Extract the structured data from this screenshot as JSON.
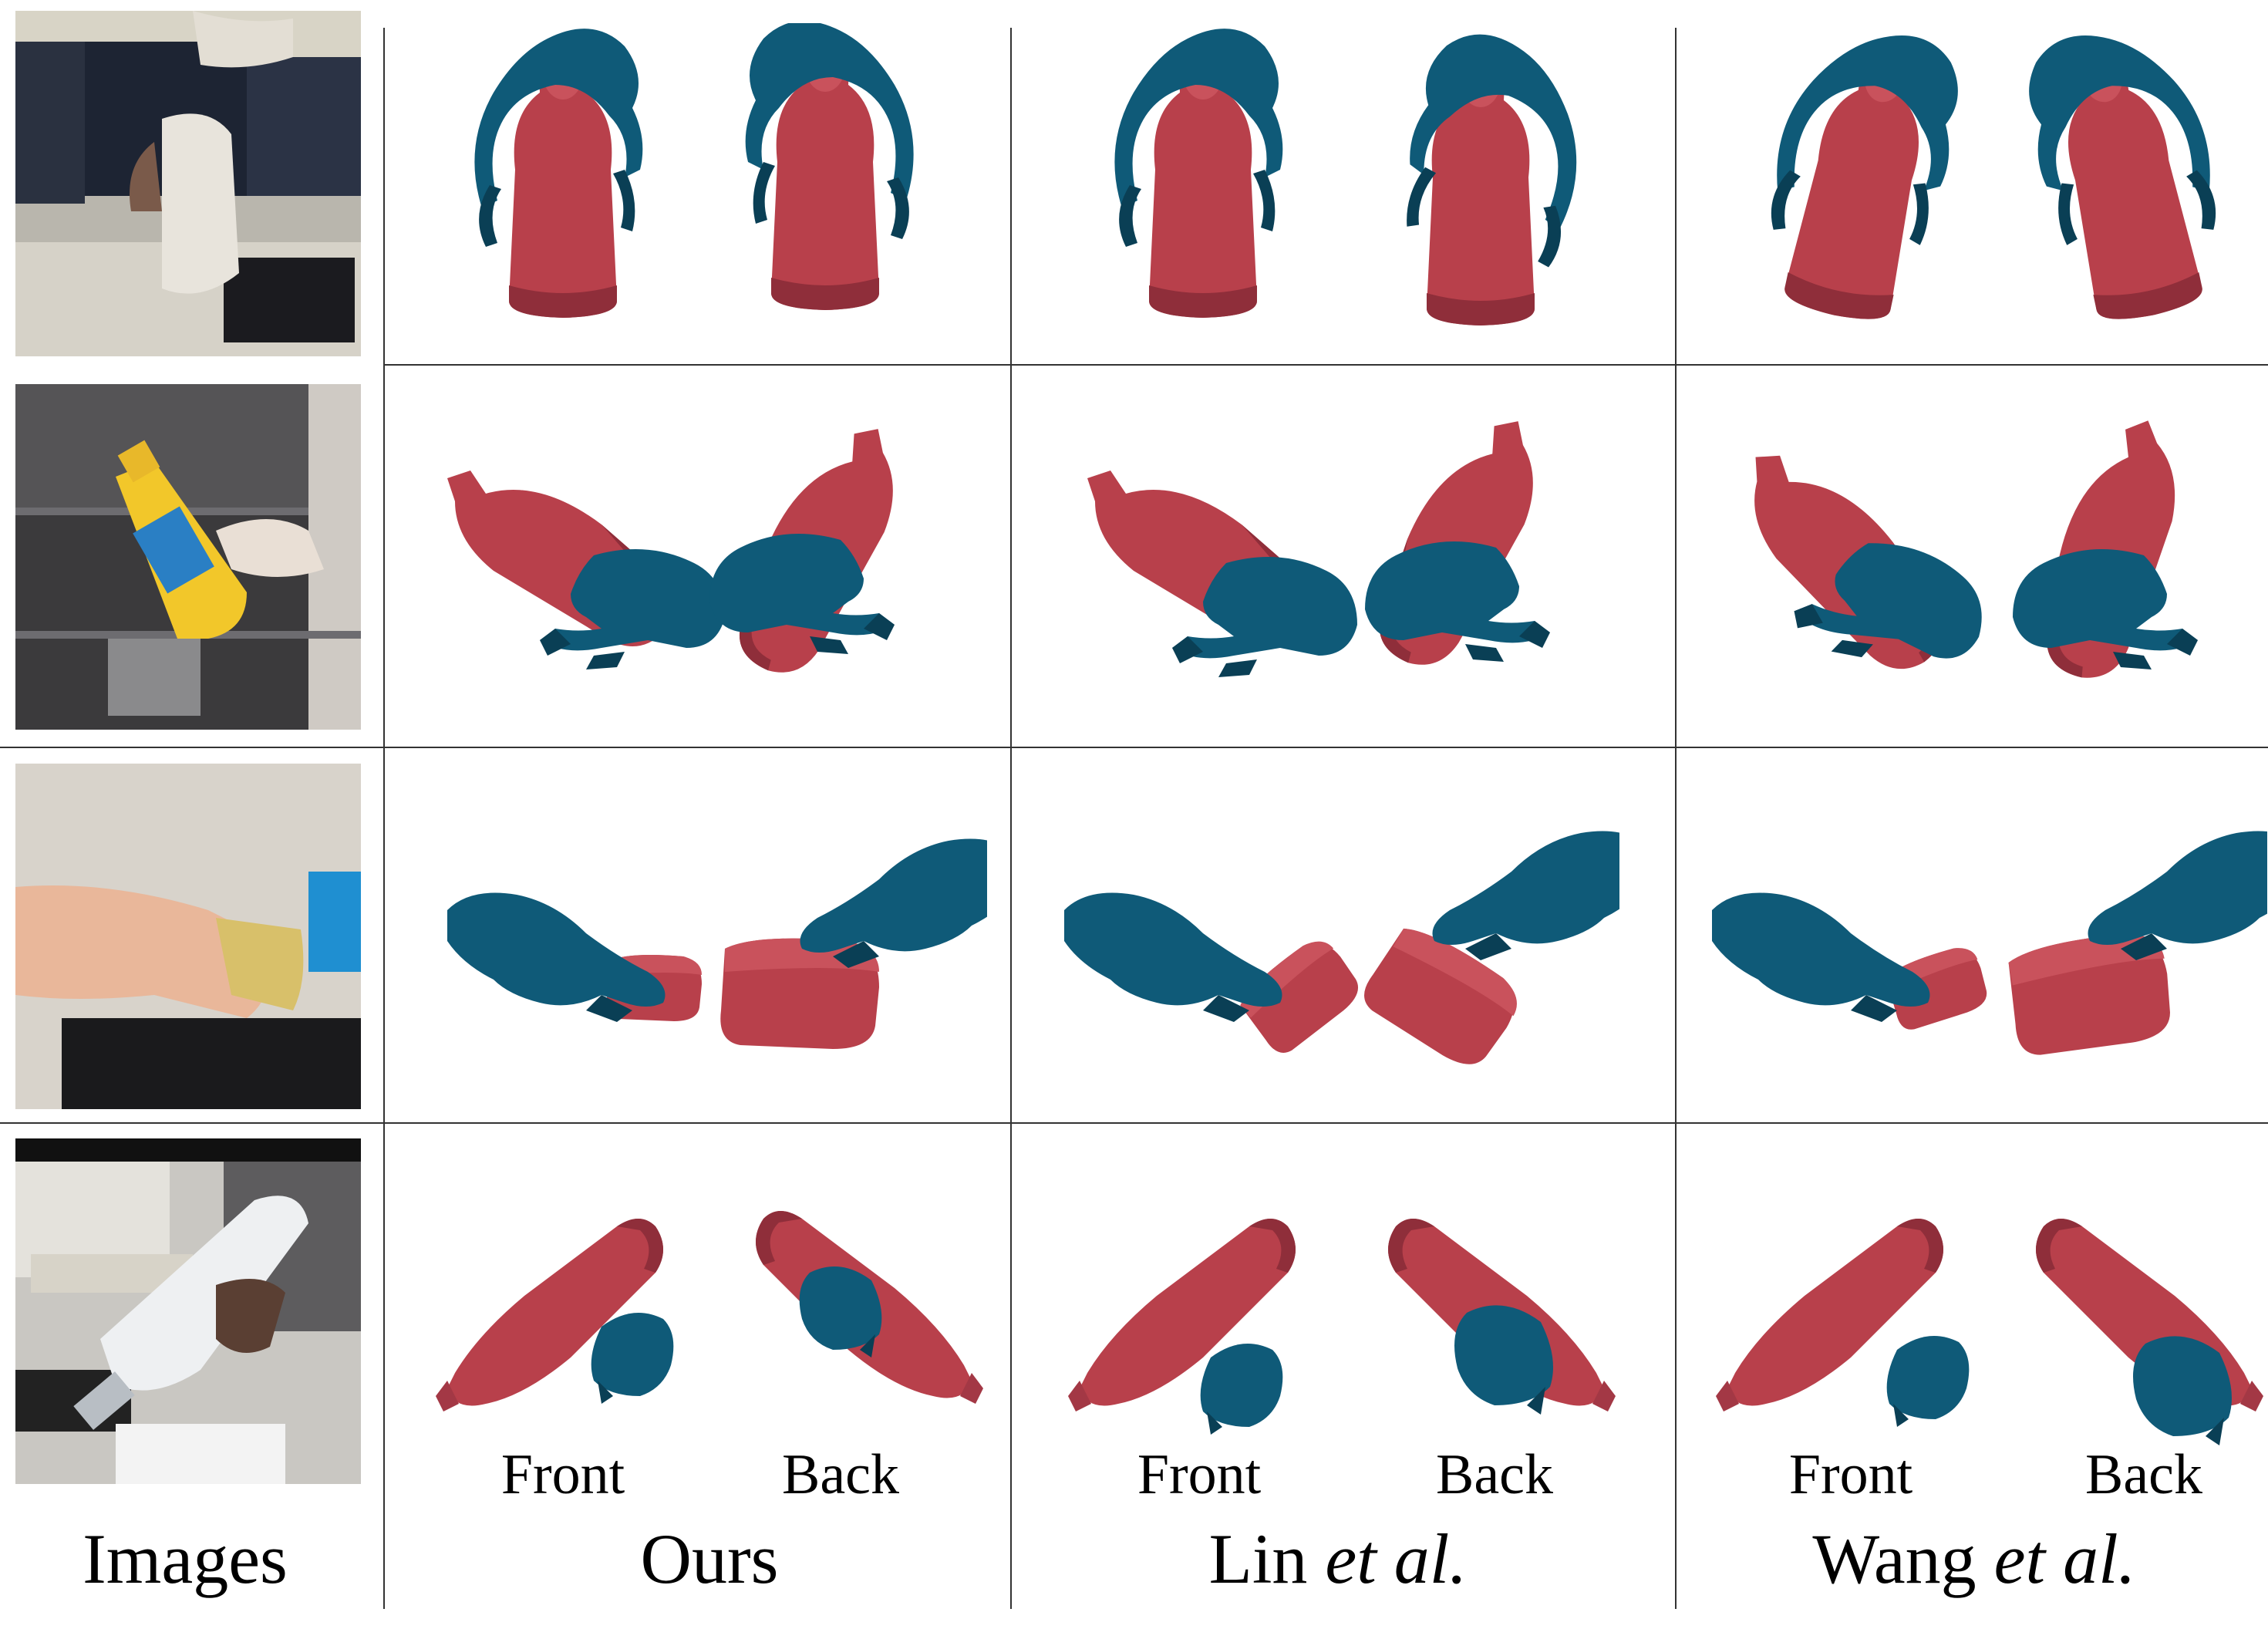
{
  "figure": {
    "colors": {
      "object": "#b8404b",
      "object_shade": "#8f2e3a",
      "hand": "#0f5a78",
      "hand_shade": "#0a3f55",
      "grid_line": "#333333"
    },
    "columns": [
      {
        "id": "images",
        "label": "Images"
      },
      {
        "id": "ours",
        "label": "Ours",
        "views": [
          "Front",
          "Back"
        ]
      },
      {
        "id": "lin",
        "label_main": "Lin ",
        "label_italic": "et al.",
        "views": [
          "Front",
          "Back"
        ]
      },
      {
        "id": "wang",
        "label_main": "Wang ",
        "label_italic": "et al.",
        "views": [
          "Front",
          "Back"
        ]
      }
    ],
    "rows": [
      {
        "id": "row1",
        "object": "bottle-upright"
      },
      {
        "id": "row2",
        "object": "mustard-bottle-tilted"
      },
      {
        "id": "row3",
        "object": "can-box"
      },
      {
        "id": "row4",
        "object": "bleach-bottle-diagonal"
      }
    ]
  }
}
